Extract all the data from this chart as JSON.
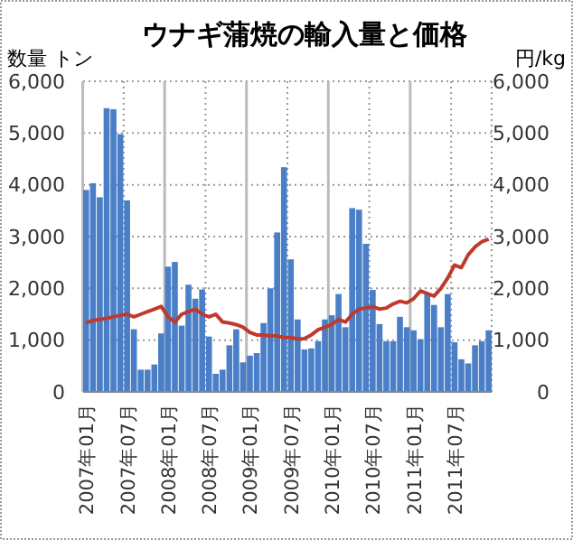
{
  "chart_data": {
    "type": "bar",
    "title": "ウナギ蒲焼の輸入量と価格",
    "ylabel": "数量 トン",
    "y2label": "円/kg",
    "categories": [
      "2007年01月",
      null,
      null,
      null,
      null,
      null,
      "2007年07月",
      null,
      null,
      null,
      null,
      null,
      "2008年01月",
      null,
      null,
      null,
      null,
      null,
      "2008年07月",
      null,
      null,
      null,
      null,
      null,
      "2009年01月",
      null,
      null,
      null,
      null,
      null,
      "2009年07月",
      null,
      null,
      null,
      null,
      null,
      "2010年01月",
      null,
      null,
      null,
      null,
      null,
      "2010年07月",
      null,
      null,
      null,
      null,
      null,
      "2011年01月",
      null,
      null,
      null,
      null,
      null,
      "2011年07月",
      null,
      null,
      null,
      null,
      null
    ],
    "series": [
      {
        "color": "#4a7fc8",
        "values": [
          3900,
          4030,
          3760,
          5480,
          5460,
          4980,
          3700,
          1210,
          430,
          430,
          530,
          1130,
          2420,
          2510,
          1280,
          2070,
          1800,
          1980,
          1070,
          350,
          430,
          900,
          1210,
          570,
          700,
          750,
          1330,
          2000,
          3080,
          4340,
          2560,
          1400,
          820,
          840,
          980,
          1400,
          1480,
          1890,
          1250,
          3550,
          3520,
          2860,
          1970,
          1310,
          980,
          980,
          1450,
          1250,
          1190,
          1020,
          1890,
          1680,
          1250,
          1890,
          960,
          630,
          550,
          900,
          980,
          1190
        ]
      },
      {
        "type": "line",
        "axis": "y2",
        "color": "#c0392b",
        "values": [
          1330,
          1380,
          1400,
          1420,
          1450,
          1480,
          1500,
          1450,
          1500,
          1550,
          1600,
          1650,
          1450,
          1350,
          1500,
          1550,
          1600,
          1500,
          1450,
          1500,
          1350,
          1330,
          1300,
          1250,
          1150,
          1100,
          1100,
          1080,
          1080,
          1050,
          1050,
          1020,
          1030,
          1100,
          1200,
          1250,
          1300,
          1400,
          1350,
          1500,
          1600,
          1620,
          1650,
          1600,
          1620,
          1700,
          1750,
          1720,
          1800,
          1950,
          1900,
          1850,
          2000,
          2200,
          2450,
          2400,
          2650,
          2800,
          2900,
          2950
        ]
      }
    ],
    "ylim": [
      0,
      6000
    ],
    "yticks": [
      {
        "value": 0,
        "label": "0"
      },
      {
        "value": 1000,
        "label": "1,000"
      },
      {
        "value": 2000,
        "label": "2,000"
      },
      {
        "value": 3000,
        "label": "3,000"
      },
      {
        "value": 4000,
        "label": "4,000"
      },
      {
        "value": 5000,
        "label": "5,000"
      },
      {
        "value": 6000,
        "label": "6,000"
      }
    ],
    "y2lim": [
      0,
      6000
    ],
    "y2ticks": [
      {
        "value": 0,
        "label": "0"
      },
      {
        "value": 1000,
        "label": "1,000"
      },
      {
        "value": 2000,
        "label": "2,000"
      },
      {
        "value": 3000,
        "label": "3,000"
      },
      {
        "value": 4000,
        "label": "4,000"
      },
      {
        "value": 5000,
        "label": "5,000"
      },
      {
        "value": 6000,
        "label": "6,000"
      }
    ],
    "grid": true
  }
}
